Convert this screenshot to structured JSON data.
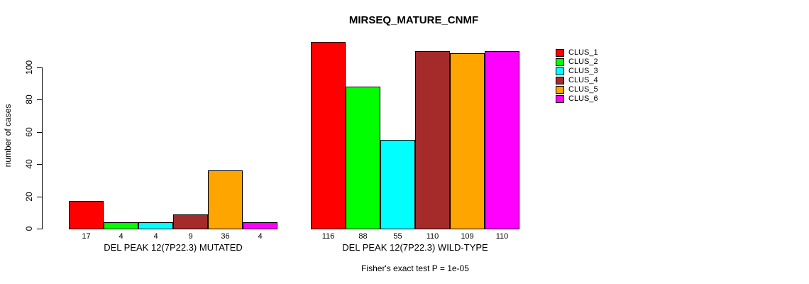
{
  "chart_data": {
    "type": "bar",
    "title": "MIRSEQ_MATURE_CNMF",
    "ylabel": "number of cases",
    "xlabel": "",
    "ylim": [
      0,
      116
    ],
    "yticks": [
      0,
      20,
      40,
      60,
      80,
      100
    ],
    "grid": false,
    "legend_position": "right",
    "clusters": [
      "CLUS_1",
      "CLUS_2",
      "CLUS_3",
      "CLUS_4",
      "CLUS_5",
      "CLUS_6"
    ],
    "colors": [
      "#FF0000",
      "#00FF00",
      "#00FFFF",
      "#A52A2A",
      "#FFA500",
      "#FF00FF"
    ],
    "groups": [
      {
        "label": "DEL PEAK 12(7P22.3) MUTATED",
        "values": [
          17,
          4,
          4,
          9,
          36,
          4
        ]
      },
      {
        "label": "DEL PEAK 12(7P22.3) WILD-TYPE",
        "values": [
          116,
          88,
          55,
          110,
          109,
          110
        ]
      }
    ],
    "annotation": "Fisher's exact test P = 1e-05"
  }
}
